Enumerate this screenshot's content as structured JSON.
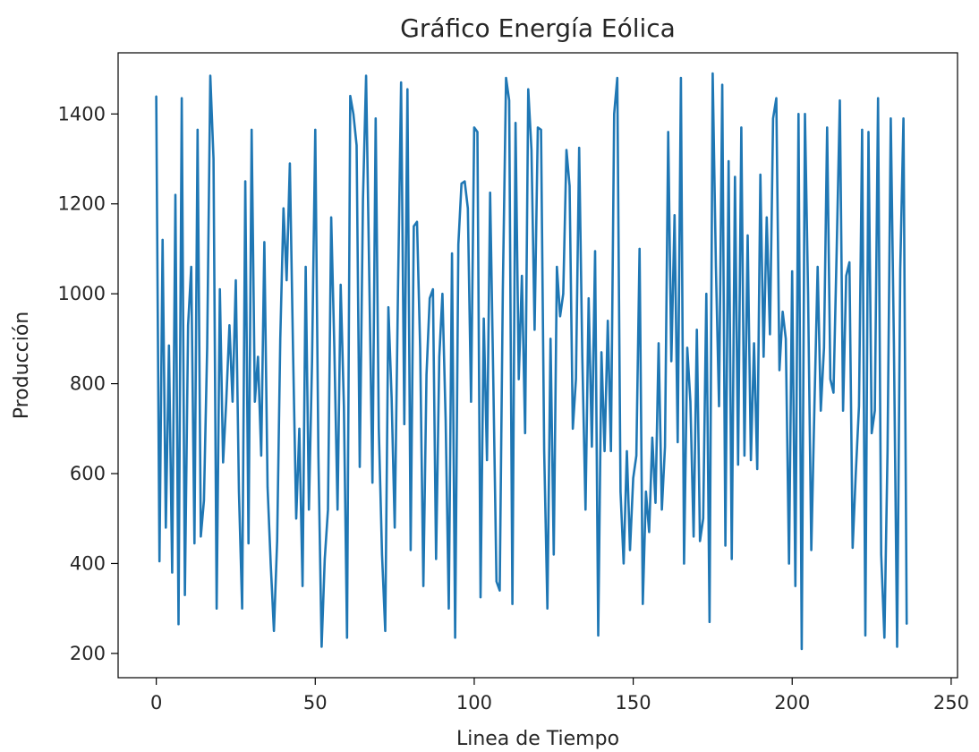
{
  "chart_data": {
    "type": "line",
    "title": "Gráfico Energía Eólica",
    "xlabel": "Linea de Tiempo",
    "ylabel": "Producción",
    "xlim": [
      -12,
      252
    ],
    "ylim": [
      146,
      1536
    ],
    "x_ticks": [
      0,
      50,
      100,
      150,
      200,
      250
    ],
    "y_ticks": [
      200,
      400,
      600,
      800,
      1000,
      1200,
      1400
    ],
    "grid": false,
    "legend": "none",
    "line_color": "#1f77b4",
    "series": [
      {
        "x_start": 0,
        "x_step": 1,
        "values": [
          1440,
          405,
          1120,
          480,
          885,
          380,
          1220,
          265,
          1435,
          330,
          930,
          1060,
          445,
          1365,
          460,
          540,
          880,
          1485,
          1300,
          300,
          1010,
          625,
          760,
          930,
          760,
          1030,
          560,
          300,
          1250,
          445,
          1365,
          760,
          860,
          640,
          1115,
          570,
          400,
          250,
          450,
          900,
          1190,
          1030,
          1290,
          880,
          500,
          700,
          350,
          1060,
          520,
          850,
          1365,
          640,
          215,
          410,
          520,
          1170,
          880,
          520,
          1020,
          750,
          235,
          1440,
          1400,
          1330,
          615,
          1210,
          1485,
          1030,
          580,
          1390,
          700,
          420,
          250,
          970,
          770,
          480,
          1000,
          1470,
          710,
          1455,
          430,
          1150,
          1160,
          880,
          350,
          820,
          990,
          1010,
          410,
          860,
          1000,
          720,
          300,
          1090,
          235,
          1110,
          1245,
          1250,
          1190,
          760,
          1370,
          1360,
          325,
          945,
          630,
          1225,
          800,
          360,
          340,
          1010,
          1480,
          1430,
          310,
          1380,
          810,
          1040,
          690,
          1455,
          1320,
          920,
          1370,
          1365,
          650,
          300,
          900,
          420,
          1060,
          950,
          1000,
          1320,
          1240,
          700,
          810,
          1325,
          860,
          520,
          990,
          660,
          1095,
          240,
          870,
          650,
          940,
          650,
          1400,
          1480,
          560,
          400,
          650,
          430,
          590,
          640,
          1100,
          310,
          560,
          470,
          680,
          535,
          890,
          520,
          660,
          1360,
          850,
          1175,
          670,
          1480,
          400,
          880,
          760,
          460,
          920,
          450,
          500,
          1000,
          270,
          1490,
          1060,
          750,
          1465,
          440,
          1295,
          410,
          1260,
          620,
          1370,
          640,
          1130,
          630,
          890,
          610,
          1265,
          860,
          1170,
          910,
          1390,
          1435,
          830,
          960,
          900,
          400,
          1050,
          350,
          1400,
          210,
          1400,
          1000,
          430,
          750,
          1060,
          740,
          880,
          1370,
          810,
          780,
          1100,
          1430,
          740,
          1040,
          1070,
          435,
          600,
          750,
          1365,
          240,
          1360,
          690,
          740,
          1435,
          420,
          235,
          650,
          1390,
          890,
          215,
          1055,
          1390,
          265
        ]
      }
    ]
  }
}
